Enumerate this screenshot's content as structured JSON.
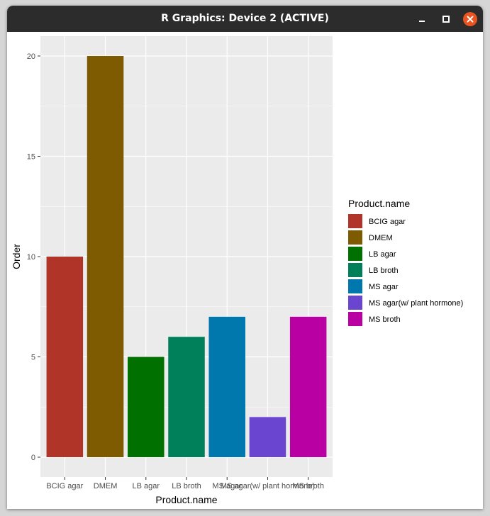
{
  "window": {
    "title": "R Graphics: Device 2 (ACTIVE)",
    "controls": {
      "minimize_icon": "minimize-icon",
      "maximize_icon": "maximize-icon",
      "close_icon": "close-icon"
    }
  },
  "chart_data": {
    "type": "bar",
    "categories": [
      "BCIG agar",
      "DMEM",
      "LB agar",
      "LB broth",
      "MS agar",
      "MS agar(w/ plant hormone)",
      "MS broth"
    ],
    "values": [
      10,
      20,
      5,
      6,
      7,
      2,
      7
    ],
    "colors": [
      "#b03428",
      "#7e5b00",
      "#007000",
      "#00805a",
      "#0077ad",
      "#6a45d0",
      "#b900a3"
    ],
    "xlabel": "Product.name",
    "ylabel": "Order",
    "ylim": [
      -0.99,
      20.99
    ],
    "yticks": [
      0,
      5,
      10,
      15,
      20
    ],
    "grid": true,
    "legend": {
      "title": "Product.name",
      "position": "right"
    },
    "panel_background": "#ebebeb"
  }
}
